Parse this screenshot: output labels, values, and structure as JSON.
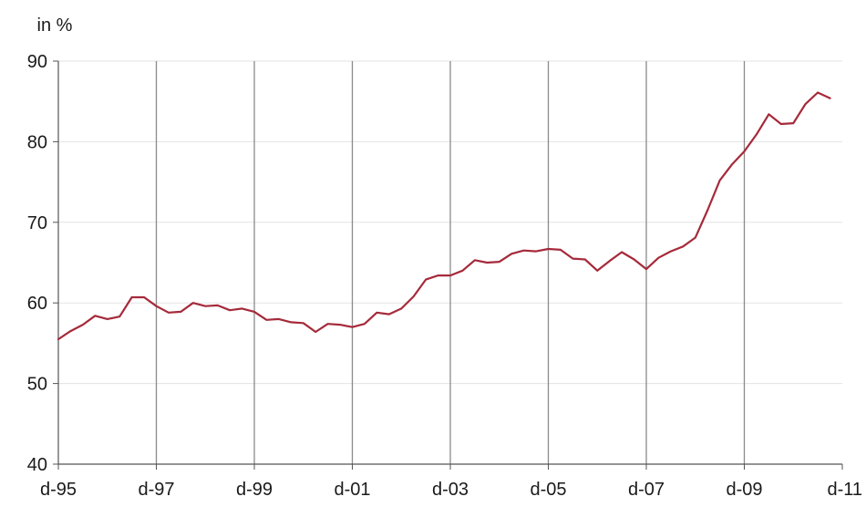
{
  "chart_data": {
    "type": "line",
    "unit_label": "in %",
    "x_tick_labels": [
      "d-95",
      "d-97",
      "d-99",
      "d-01",
      "d-03",
      "d-05",
      "d-07",
      "d-09",
      "d-11"
    ],
    "y_tick_labels": [
      "40",
      "50",
      "60",
      "70",
      "80",
      "90"
    ],
    "ylim": [
      40,
      90
    ],
    "xlim": [
      "1995-12",
      "2011-12"
    ],
    "grid": "vertical lines at tick labels",
    "line_color": "#a52a3a",
    "series": [
      {
        "x": [
          "1995-12",
          "1996-03",
          "1996-06",
          "1996-09",
          "1996-12",
          "1997-03",
          "1997-06",
          "1997-09",
          "1997-12",
          "1998-03",
          "1998-06",
          "1998-09",
          "1998-12",
          "1999-03",
          "1999-06",
          "1999-09",
          "1999-12",
          "2000-03",
          "2000-06",
          "2000-09",
          "2000-12",
          "2001-03",
          "2001-06",
          "2001-09",
          "2001-12",
          "2002-03",
          "2002-06",
          "2002-09",
          "2002-12",
          "2003-03",
          "2003-06",
          "2003-09",
          "2003-12",
          "2004-03",
          "2004-06",
          "2004-09",
          "2004-12",
          "2005-03",
          "2005-06",
          "2005-09",
          "2005-12",
          "2006-03",
          "2006-06",
          "2006-09",
          "2006-12",
          "2007-03",
          "2007-06",
          "2007-09",
          "2007-12",
          "2008-03",
          "2008-06",
          "2008-09",
          "2008-12",
          "2009-03",
          "2009-06",
          "2009-09",
          "2009-12",
          "2010-03",
          "2010-06",
          "2010-09",
          "2010-12",
          "2011-03",
          "2011-06",
          "2011-09"
        ],
        "values": [
          55.5,
          56.5,
          57.3,
          58.4,
          58.0,
          58.3,
          60.7,
          60.7,
          59.6,
          58.8,
          58.9,
          60.0,
          59.6,
          59.7,
          59.1,
          59.3,
          58.9,
          57.9,
          58.0,
          57.6,
          57.5,
          56.4,
          57.4,
          57.3,
          57.0,
          57.4,
          58.8,
          58.6,
          59.3,
          60.8,
          62.9,
          63.4,
          63.4,
          64.0,
          65.3,
          65.0,
          65.1,
          66.1,
          66.5,
          66.4,
          66.7,
          66.6,
          65.5,
          65.4,
          64.0,
          65.2,
          66.3,
          65.4,
          64.2,
          65.6,
          66.4,
          67.0,
          68.1,
          71.5,
          75.2,
          77.2,
          78.8,
          80.9,
          83.4,
          82.2,
          82.3,
          84.7,
          86.1,
          85.4
        ]
      }
    ]
  }
}
